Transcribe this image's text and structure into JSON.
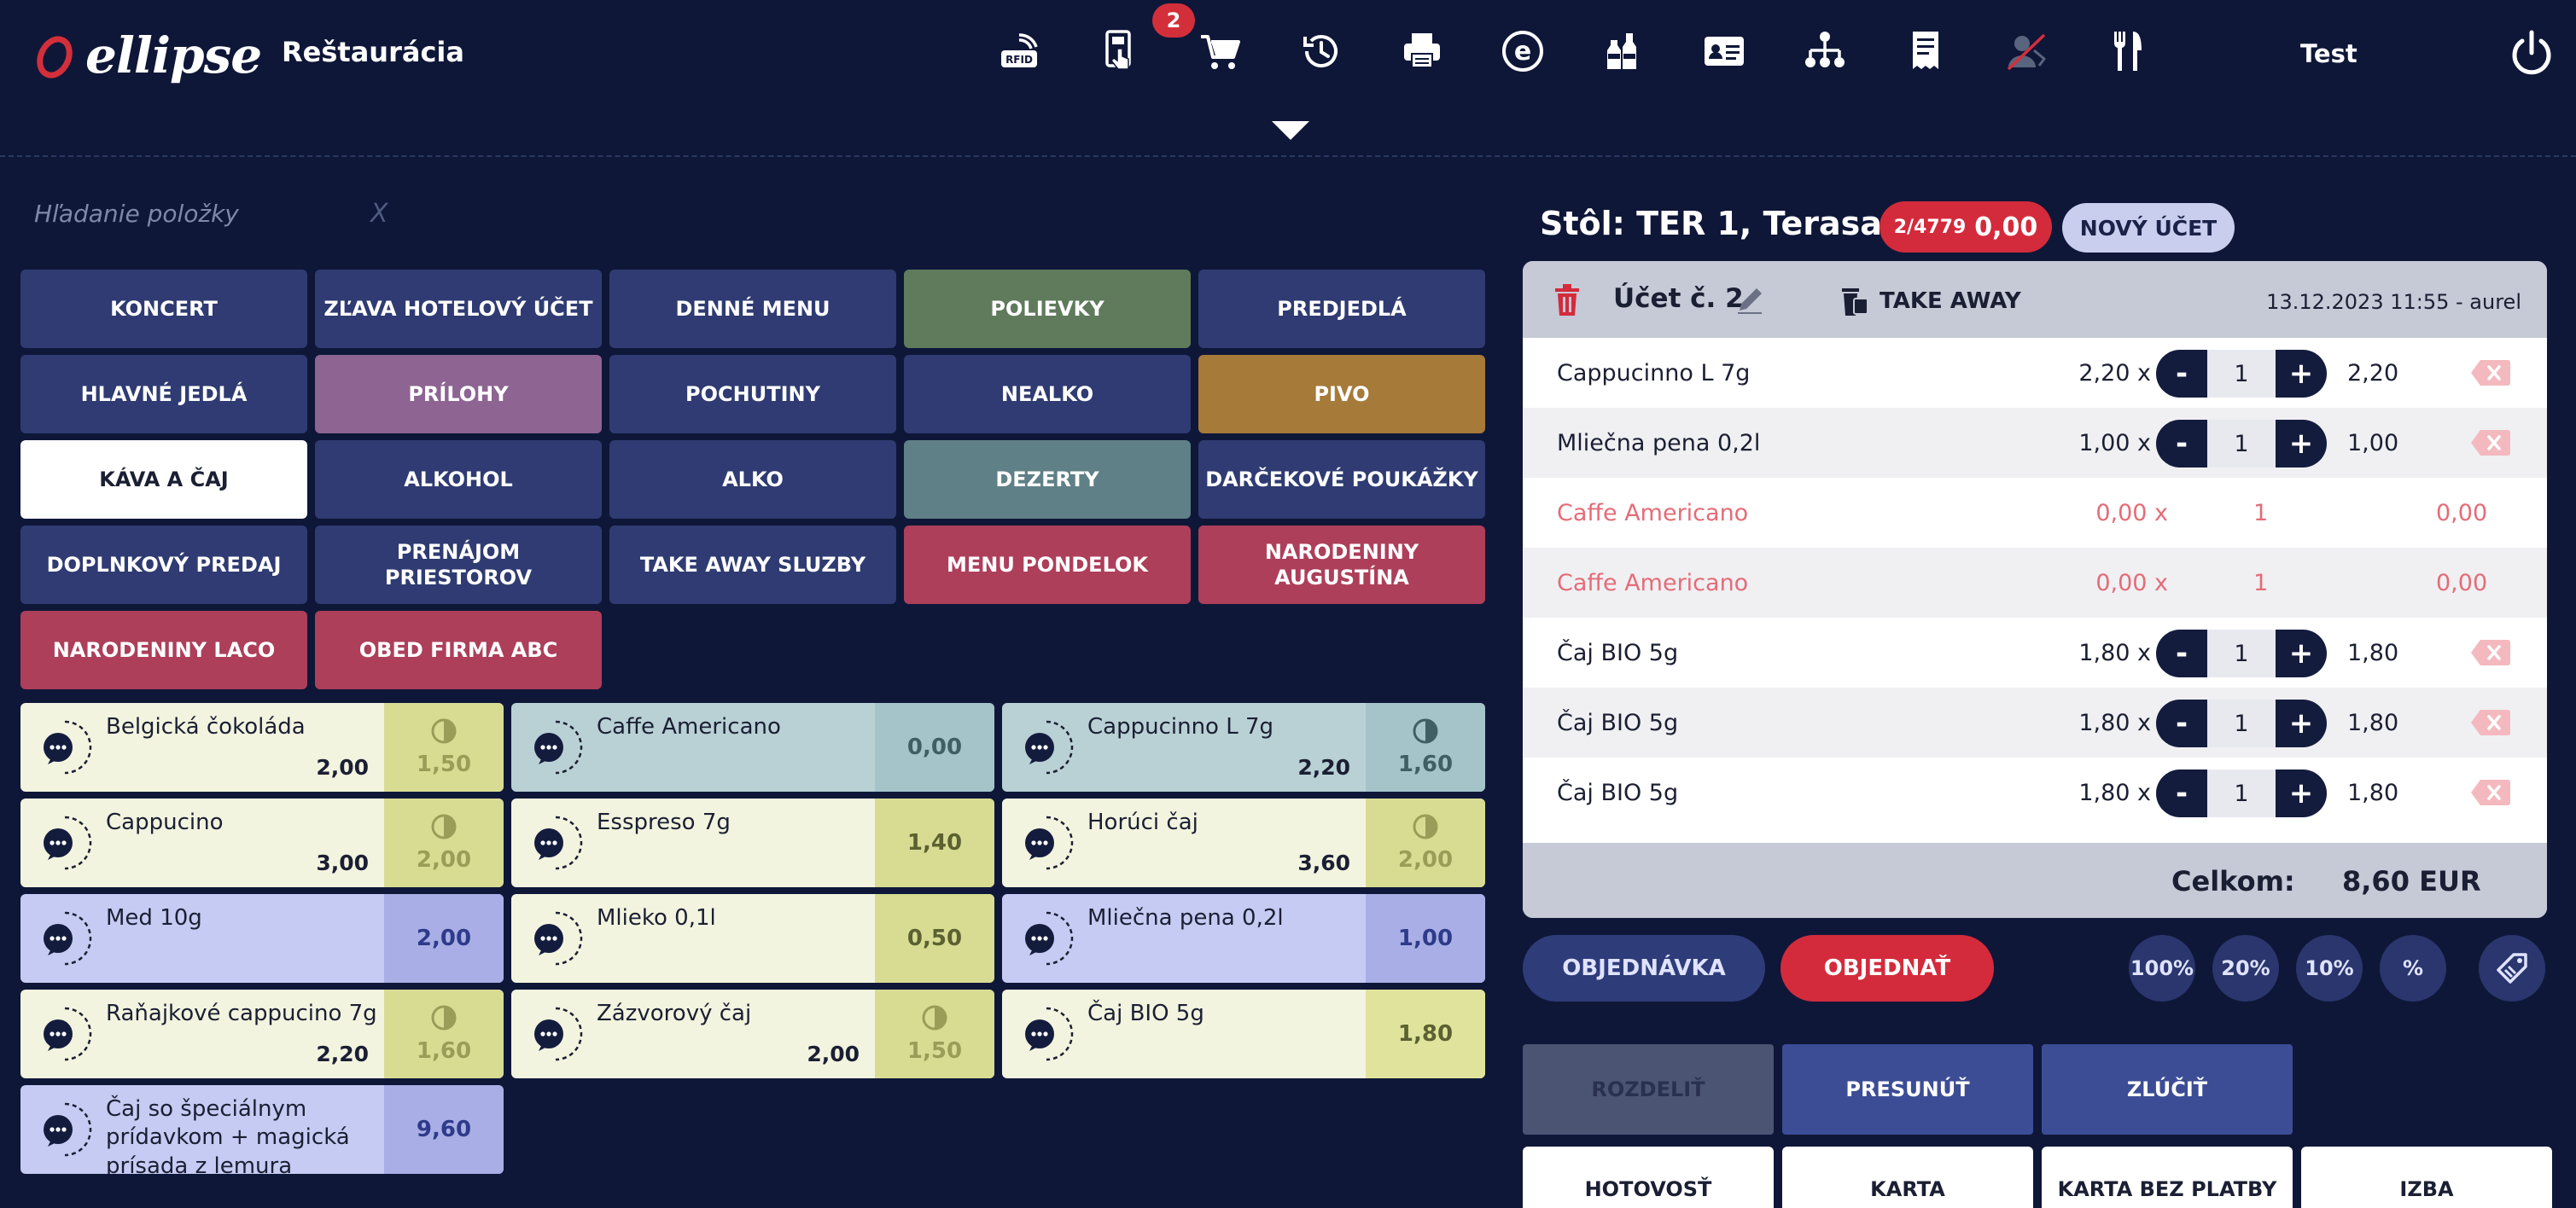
{
  "app": {
    "logo_text": "ellipse",
    "title": "Reštaurácia",
    "user": "Test"
  },
  "toolbar": {
    "icons": [
      "rfid-icon",
      "touch-terminal-icon",
      "cart-icon",
      "history-icon",
      "printer-icon",
      "ellipse-e-icon",
      "bottles-icon",
      "id-card-icon",
      "network-icon",
      "receipt-icon",
      "person-off-icon",
      "cutlery-icon"
    ],
    "rfid_label": "RFID",
    "e_label": "e",
    "cart_badge": "2"
  },
  "search": {
    "placeholder": "Hľadanie položky",
    "clear_label": "X"
  },
  "categories": [
    {
      "label": "KONCERT",
      "color": "#2f3b72"
    },
    {
      "label": "ZĽAVA HOTELOVÝ ÚČET",
      "color": "#2f3b72"
    },
    {
      "label": "DENNÉ MENU",
      "color": "#2f3b72"
    },
    {
      "label": "POLIEVKY",
      "color": "#5f7b5c"
    },
    {
      "label": "PREDJEDLÁ",
      "color": "#2f3b72"
    },
    {
      "label": "HLAVNÉ JEDLÁ",
      "color": "#2f3b72"
    },
    {
      "label": "PRÍLOHY",
      "color": "#8d6492"
    },
    {
      "label": "POCHUTINY",
      "color": "#2f3b72"
    },
    {
      "label": "NEALKO",
      "color": "#2f3b72"
    },
    {
      "label": "PIVO",
      "color": "#a67a39"
    },
    {
      "label": "KÁVA A ČAJ",
      "color": "#ffffff",
      "text": "#1b1f33"
    },
    {
      "label": "ALKOHOL",
      "color": "#2f3b72"
    },
    {
      "label": "ALKO",
      "color": "#2f3b72"
    },
    {
      "label": "DEZERTY",
      "color": "#5f8086"
    },
    {
      "label": "DARČEKOVÉ POUKÁŽKY",
      "color": "#2f3b72"
    },
    {
      "label": "DOPLNKOVÝ PREDAJ",
      "color": "#2f3b72"
    },
    {
      "label": "PRENÁJOM PRIESTOROV",
      "color": "#2f3b72"
    },
    {
      "label": "TAKE AWAY SLUZBY",
      "color": "#2f3b72"
    },
    {
      "label": "MENU PONDELOK",
      "color": "#ad3f5a"
    },
    {
      "label": "NARODENINY AUGUSTÍNA",
      "color": "#ad3f5a"
    },
    {
      "label": "NARODENINY LACO",
      "color": "#ad3f5a"
    },
    {
      "label": "OBED FIRMA ABC",
      "color": "#ad3f5a"
    }
  ],
  "products": [
    {
      "name": "Belgická čokoláda",
      "price": "2,00",
      "side": "1,50",
      "half": true,
      "bg": "#f3f4df",
      "sideBg": "#d8dc93",
      "sideText": "#9a9d57"
    },
    {
      "name": "Caffe Americano",
      "price": "",
      "side": "0,00",
      "half": false,
      "bg": "#b9d1d5",
      "sideBg": "#a4c4c9",
      "sideText": "#3f5f64"
    },
    {
      "name": "Cappucinno L 7g",
      "price": "2,20",
      "side": "1,60",
      "half": true,
      "bg": "#b9d1d5",
      "sideBg": "#a4c4c9",
      "sideText": "#3f5f64"
    },
    {
      "name": "Cappucino",
      "price": "3,00",
      "side": "2,00",
      "half": true,
      "bg": "#f3f4df",
      "sideBg": "#d8dc93",
      "sideText": "#9a9d57"
    },
    {
      "name": "Esspreso 7g",
      "price": "",
      "side": "1,40",
      "half": false,
      "bg": "#f3f4df",
      "sideBg": "#d8dc93",
      "sideText": "#5b6130"
    },
    {
      "name": "Horúci čaj",
      "price": "3,60",
      "side": "2,00",
      "half": true,
      "bg": "#f3f4df",
      "sideBg": "#d8dc93",
      "sideText": "#9a9d57"
    },
    {
      "name": "Med 10g",
      "price": "",
      "side": "2,00",
      "half": false,
      "bg": "#c6cbf3",
      "sideBg": "#a9afe6",
      "sideText": "#2e3b8a"
    },
    {
      "name": "Mlieko 0,1l",
      "price": "",
      "side": "0,50",
      "half": false,
      "bg": "#f3f4df",
      "sideBg": "#d8dc93",
      "sideText": "#5b6130"
    },
    {
      "name": "Mliečna pena 0,2l",
      "price": "",
      "side": "1,00",
      "half": false,
      "bg": "#c6cbf3",
      "sideBg": "#a9afe6",
      "sideText": "#2e3b8a"
    },
    {
      "name": "Raňajkové cappucino 7g",
      "price": "2,20",
      "side": "1,60",
      "half": true,
      "bg": "#f3f4df",
      "sideBg": "#d8dc93",
      "sideText": "#9a9d57"
    },
    {
      "name": "Zázvorový čaj",
      "price": "2,00",
      "side": "1,50",
      "half": true,
      "bg": "#f3f4df",
      "sideBg": "#d8dc93",
      "sideText": "#9a9d57"
    },
    {
      "name": "Čaj BIO 5g",
      "price": "",
      "side": "1,80",
      "half": false,
      "bg": "#f3f4df",
      "sideBg": "#e0e39b",
      "sideText": "#5b6130"
    },
    {
      "name": "Čaj so špeciálnym prídavkom + magická prísada z lemura",
      "price": "",
      "side": "9,60",
      "half": false,
      "bg": "#c6cbf3",
      "sideBg": "#a9afe6",
      "sideText": "#2e3b8a"
    }
  ],
  "table": {
    "title": "Stôl: TER 1, Terasa",
    "badge_small": "2/4779",
    "badge_amount": "0,00",
    "new_account": "NOVÝ ÚČET"
  },
  "order": {
    "account_name": "Účet č. 2",
    "takeaway": "TAKE AWAY",
    "date": "13.12.2023 11:55 - aurel",
    "lines": [
      {
        "name": "Cappucinno L 7g",
        "unit": "2,20 x",
        "qty": "1",
        "total": "2,20",
        "cancelled": false
      },
      {
        "name": "Mliečna pena 0,2l",
        "unit": "1,00 x",
        "qty": "1",
        "total": "1,00",
        "cancelled": false
      },
      {
        "name": "Caffe Americano",
        "unit": "0,00 x",
        "qty": "1",
        "total": "0,00",
        "cancelled": true
      },
      {
        "name": "Caffe Americano",
        "unit": "0,00 x",
        "qty": "1",
        "total": "0,00",
        "cancelled": true
      },
      {
        "name": "Čaj BIO 5g",
        "unit": "1,80 x",
        "qty": "1",
        "total": "1,80",
        "cancelled": false
      },
      {
        "name": "Čaj BIO 5g",
        "unit": "1,80 x",
        "qty": "1",
        "total": "1,80",
        "cancelled": false
      },
      {
        "name": "Čaj BIO 5g",
        "unit": "1,80 x",
        "qty": "1",
        "total": "1,80",
        "cancelled": false
      }
    ],
    "minus": "-",
    "plus": "+",
    "total_label": "Celkom:",
    "total_value": "8,60 EUR"
  },
  "actions": {
    "order_list": "OBJEDNÁVKA",
    "place_order": "OBJEDNAŤ",
    "discounts": [
      "100%",
      "20%",
      "10%",
      "%"
    ],
    "split": "ROZDELIŤ",
    "move": "PRESUNÚŤ",
    "merge": "ZLÚČIŤ",
    "payments": [
      "HOTOVOSŤ",
      "KARTA",
      "KARTA BEZ PLATBY",
      "IZBA"
    ]
  }
}
